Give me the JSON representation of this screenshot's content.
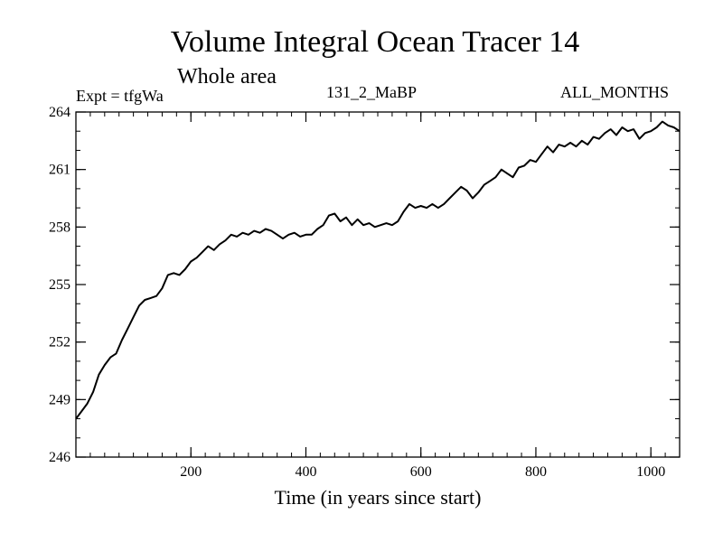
{
  "chart_data": {
    "type": "line",
    "title": "Volume Integral Ocean Tracer 14",
    "subtitle": "Whole area",
    "annotations": {
      "left": "Expt = tfgWa",
      "center": "131_2_MaBP",
      "right": "ALL_MONTHS"
    },
    "xlabel": "Time (in years since start)",
    "ylabel": "",
    "xlim": [
      0,
      1050
    ],
    "ylim": [
      246,
      264
    ],
    "xticks": [
      200,
      400,
      600,
      800,
      1000
    ],
    "yticks": [
      246,
      249,
      252,
      255,
      258,
      261,
      264
    ],
    "grid": false,
    "legend": "none",
    "line_color": "#000000",
    "series": [
      {
        "x": [
          0,
          10,
          20,
          30,
          40,
          50,
          60,
          70,
          80,
          90,
          100,
          110,
          120,
          130,
          140,
          150,
          160,
          170,
          180,
          190,
          200,
          210,
          220,
          230,
          240,
          250,
          260,
          270,
          280,
          290,
          300,
          310,
          320,
          330,
          340,
          350,
          360,
          370,
          380,
          390,
          400,
          410,
          420,
          430,
          440,
          450,
          460,
          470,
          480,
          490,
          500,
          510,
          520,
          530,
          540,
          550,
          560,
          570,
          580,
          590,
          600,
          610,
          620,
          630,
          640,
          650,
          660,
          670,
          680,
          690,
          700,
          710,
          720,
          730,
          740,
          750,
          760,
          770,
          780,
          790,
          800,
          810,
          820,
          830,
          840,
          850,
          860,
          870,
          880,
          890,
          900,
          910,
          920,
          930,
          940,
          950,
          960,
          970,
          980,
          990,
          1000,
          1010,
          1020,
          1030,
          1040,
          1050
        ],
        "values": [
          248.0,
          248.4,
          248.8,
          249.4,
          250.3,
          250.8,
          251.2,
          251.4,
          252.1,
          252.7,
          253.3,
          253.9,
          254.2,
          254.3,
          254.4,
          254.8,
          255.5,
          255.6,
          255.5,
          255.8,
          256.2,
          256.4,
          256.7,
          257.0,
          256.8,
          257.1,
          257.3,
          257.6,
          257.5,
          257.7,
          257.6,
          257.8,
          257.7,
          257.9,
          257.8,
          257.6,
          257.4,
          257.6,
          257.7,
          257.5,
          257.6,
          257.6,
          257.9,
          258.1,
          258.6,
          258.7,
          258.3,
          258.5,
          258.1,
          258.4,
          258.1,
          258.2,
          258.0,
          258.1,
          258.2,
          258.1,
          258.3,
          258.8,
          259.2,
          259.0,
          259.1,
          259.0,
          259.2,
          259.0,
          259.2,
          259.5,
          259.8,
          260.1,
          259.9,
          259.5,
          259.8,
          260.2,
          260.4,
          260.6,
          261.0,
          260.8,
          260.6,
          261.1,
          261.2,
          261.5,
          261.4,
          261.8,
          262.2,
          261.9,
          262.3,
          262.2,
          262.4,
          262.2,
          262.5,
          262.3,
          262.7,
          262.6,
          262.9,
          263.1,
          262.8,
          263.2,
          263.0,
          263.1,
          262.6,
          262.9,
          263.0,
          263.2,
          263.5,
          263.3,
          263.2,
          263.0
        ]
      }
    ]
  }
}
